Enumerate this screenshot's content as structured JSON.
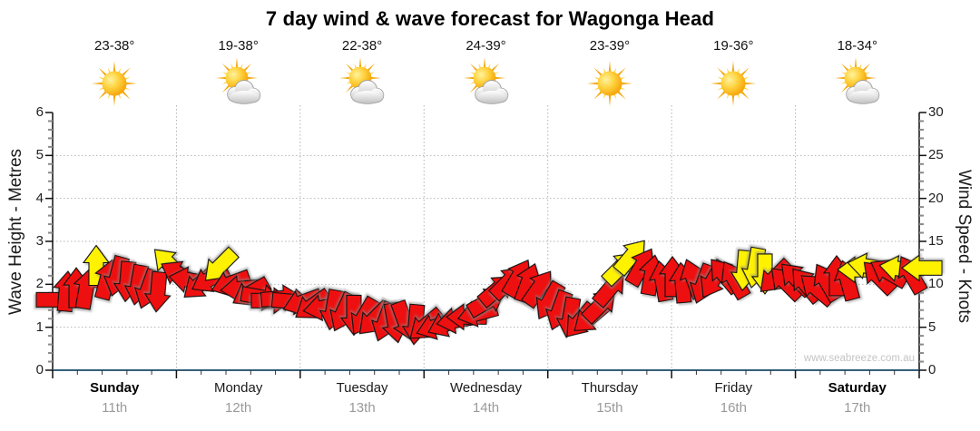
{
  "chart_data": {
    "type": "scatter",
    "subtype": "wind-direction-arrow-band",
    "title": "7 day wind & wave forecast for Wagonga Head",
    "watermark": "www.seabreeze.com.au",
    "left_axis": {
      "label": "Wave Height - Metres",
      "min": 0,
      "max": 6,
      "major_step": 1,
      "minor_step": 0.2
    },
    "right_axis": {
      "label": "Wind Speed - Knots",
      "min": 0,
      "max": 30,
      "major_step": 5,
      "minor_step": 1
    },
    "grid": {
      "horizontal_dotted_at_metres": [
        1,
        2,
        3,
        4,
        5
      ],
      "vertical_dotted_at_day_boundaries": true
    },
    "days": [
      {
        "name": "Sunday",
        "date": "11th",
        "temp": "23-38°",
        "icon": "sunny",
        "bold": true
      },
      {
        "name": "Monday",
        "date": "12th",
        "temp": "19-38°",
        "icon": "partly-cloudy",
        "bold": false
      },
      {
        "name": "Tuesday",
        "date": "13th",
        "temp": "22-38°",
        "icon": "partly-cloudy",
        "bold": false
      },
      {
        "name": "Wednesday",
        "date": "14th",
        "temp": "24-39°",
        "icon": "partly-cloudy",
        "bold": false
      },
      {
        "name": "Thursday",
        "date": "15th",
        "temp": "23-39°",
        "icon": "sunny",
        "bold": false
      },
      {
        "name": "Friday",
        "date": "16th",
        "temp": "19-36°",
        "icon": "sunny",
        "bold": false
      },
      {
        "name": "Saturday",
        "date": "17th",
        "temp": "18-34°",
        "icon": "partly-cloudy",
        "bold": true
      }
    ],
    "colors": {
      "arrow_red": "#ee1010",
      "arrow_yellow": "#fff200",
      "arrow_outline": "#111111",
      "grid_line": "#b3b3b3",
      "baseline": "#35607a",
      "axis_line": "#111111",
      "minor_tick": "#8a8a8a",
      "date_text": "#9a9a9a",
      "watermark_text": "#c4c4c4"
    },
    "arrow_format": [
      "x_px_from_plot_left",
      "wind_speed_knots",
      "direction_deg_screen_0_is_up",
      "color r=red y=yellow"
    ],
    "arrows": [
      [
        4,
        8.2,
        90,
        "r"
      ],
      [
        15,
        9.2,
        5,
        "r"
      ],
      [
        26,
        9.6,
        0,
        "r"
      ],
      [
        37,
        9.5,
        10,
        "r"
      ],
      [
        48,
        12.2,
        0,
        "y"
      ],
      [
        60,
        10.6,
        15,
        "r"
      ],
      [
        71,
        10.9,
        195,
        "r"
      ],
      [
        82,
        10.3,
        185,
        "r"
      ],
      [
        94,
        9.9,
        190,
        "r"
      ],
      [
        105,
        9.4,
        200,
        "r"
      ],
      [
        116,
        9.1,
        185,
        "r"
      ],
      [
        128,
        12.4,
        315,
        "y"
      ],
      [
        139,
        11.2,
        300,
        "r"
      ],
      [
        150,
        10.5,
        280,
        "r"
      ],
      [
        162,
        10.0,
        230,
        "r"
      ],
      [
        173,
        10.6,
        240,
        "r"
      ],
      [
        184,
        12.1,
        225,
        "y"
      ],
      [
        196,
        10.1,
        250,
        "r"
      ],
      [
        207,
        9.5,
        265,
        "r"
      ],
      [
        218,
        9.0,
        240,
        "r"
      ],
      [
        230,
        8.5,
        100,
        "r"
      ],
      [
        241,
        8.1,
        90,
        "r"
      ],
      [
        252,
        8.4,
        85,
        "r"
      ],
      [
        264,
        8.0,
        95,
        "r"
      ],
      [
        275,
        7.9,
        250,
        "r"
      ],
      [
        286,
        7.5,
        235,
        "r"
      ],
      [
        298,
        7.3,
        260,
        "r"
      ],
      [
        309,
        7.0,
        190,
        "r"
      ],
      [
        320,
        6.7,
        205,
        "r"
      ],
      [
        332,
        6.4,
        180,
        "r"
      ],
      [
        343,
        6.2,
        210,
        "r"
      ],
      [
        354,
        5.9,
        225,
        "r"
      ],
      [
        366,
        5.6,
        200,
        "r"
      ],
      [
        377,
        5.5,
        170,
        "r"
      ],
      [
        388,
        5.7,
        160,
        "r"
      ],
      [
        400,
        5.3,
        185,
        "r"
      ],
      [
        411,
        5.2,
        230,
        "r"
      ],
      [
        422,
        5.1,
        250,
        "r"
      ],
      [
        434,
        5.4,
        245,
        "r"
      ],
      [
        445,
        5.8,
        260,
        "r"
      ],
      [
        456,
        6.2,
        270,
        "r"
      ],
      [
        468,
        6.6,
        255,
        "r"
      ],
      [
        479,
        8.0,
        60,
        "r"
      ],
      [
        490,
        9.4,
        50,
        "r"
      ],
      [
        502,
        10.3,
        45,
        "r"
      ],
      [
        513,
        10.8,
        30,
        "r"
      ],
      [
        524,
        10.2,
        20,
        "r"
      ],
      [
        536,
        9.6,
        35,
        "r"
      ],
      [
        547,
        8.0,
        210,
        "r"
      ],
      [
        558,
        6.9,
        200,
        "r"
      ],
      [
        570,
        6.1,
        190,
        "r"
      ],
      [
        581,
        5.7,
        220,
        "r"
      ],
      [
        592,
        6.1,
        230,
        "r"
      ],
      [
        604,
        7.6,
        45,
        "r"
      ],
      [
        615,
        9.6,
        40,
        "r"
      ],
      [
        626,
        12.0,
        45,
        "y"
      ],
      [
        638,
        13.3,
        40,
        "y"
      ],
      [
        649,
        12.1,
        30,
        "r"
      ],
      [
        660,
        11.1,
        10,
        "r"
      ],
      [
        672,
        10.4,
        350,
        "r"
      ],
      [
        683,
        10.9,
        0,
        "r"
      ],
      [
        694,
        10.2,
        355,
        "r"
      ],
      [
        706,
        10.7,
        340,
        "r"
      ],
      [
        717,
        10.0,
        200,
        "r"
      ],
      [
        728,
        10.5,
        210,
        "r"
      ],
      [
        740,
        11.1,
        320,
        "r"
      ],
      [
        751,
        10.6,
        330,
        "r"
      ],
      [
        762,
        11.6,
        185,
        "y"
      ],
      [
        774,
        11.9,
        190,
        "y"
      ],
      [
        785,
        11.2,
        180,
        "y"
      ],
      [
        796,
        10.8,
        225,
        "r"
      ],
      [
        808,
        10.2,
        315,
        "r"
      ],
      [
        819,
        10.7,
        315,
        "r"
      ],
      [
        830,
        10.0,
        320,
        "r"
      ],
      [
        842,
        9.5,
        310,
        "r"
      ],
      [
        853,
        10.3,
        330,
        "r"
      ],
      [
        864,
        11.0,
        0,
        "r"
      ],
      [
        876,
        10.5,
        345,
        "r"
      ],
      [
        887,
        11.7,
        270,
        "y"
      ],
      [
        898,
        12.1,
        280,
        "y"
      ],
      [
        910,
        10.9,
        315,
        "r"
      ],
      [
        921,
        11.4,
        300,
        "r"
      ],
      [
        933,
        11.8,
        280,
        "y"
      ],
      [
        946,
        11.2,
        330,
        "r"
      ],
      [
        958,
        11.9,
        270,
        "y"
      ]
    ]
  }
}
